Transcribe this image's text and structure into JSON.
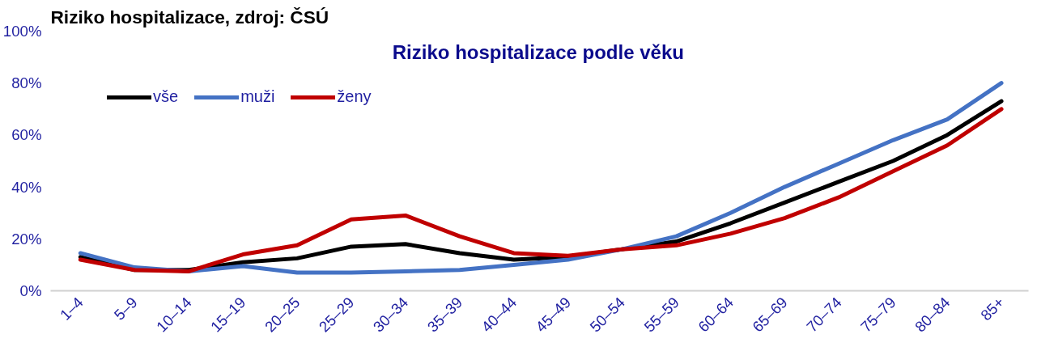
{
  "chart_data": {
    "type": "line",
    "title": "Riziko hospitalizace, zdroj: ČSÚ",
    "subtitle": "Riziko hospitalizace  podle věku",
    "categories": [
      "1–4",
      "5–9",
      "10–14",
      "15–19",
      "20–25",
      "25–29",
      "30–34",
      "35–39",
      "40–44",
      "45–49",
      "50–54",
      "55–59",
      "60–64",
      "65–69",
      "70–74",
      "75–79",
      "80–84",
      "85+"
    ],
    "series": [
      {
        "name": "vše",
        "color": "#000000",
        "values": [
          13,
          8,
          8,
          11,
          12.5,
          17,
          18,
          14.5,
          12,
          13,
          16,
          19,
          26,
          34,
          42,
          50,
          60,
          73
        ]
      },
      {
        "name": "muži",
        "color": "#4472c4",
        "values": [
          14.5,
          9,
          7.5,
          9.5,
          7,
          7,
          7.5,
          8,
          10,
          12,
          16,
          21,
          30,
          40,
          49,
          58,
          66,
          80
        ]
      },
      {
        "name": "ženy",
        "color": "#c00000",
        "values": [
          12,
          8,
          7.5,
          14,
          17.5,
          27.5,
          29,
          21,
          14.5,
          13.5,
          16,
          17.5,
          22,
          28,
          36,
          46,
          56,
          70
        ]
      }
    ],
    "ylim": [
      0,
      100
    ],
    "yticks": [
      {
        "value": 0,
        "label": "0%"
      },
      {
        "value": 20,
        "label": "20%"
      },
      {
        "value": 40,
        "label": "40%"
      },
      {
        "value": 60,
        "label": "60%"
      },
      {
        "value": 80,
        "label": "80%"
      },
      {
        "value": 100,
        "label": "100%"
      }
    ],
    "grid": false,
    "legend": "top left",
    "marker": "none",
    "line_style": "solid"
  }
}
